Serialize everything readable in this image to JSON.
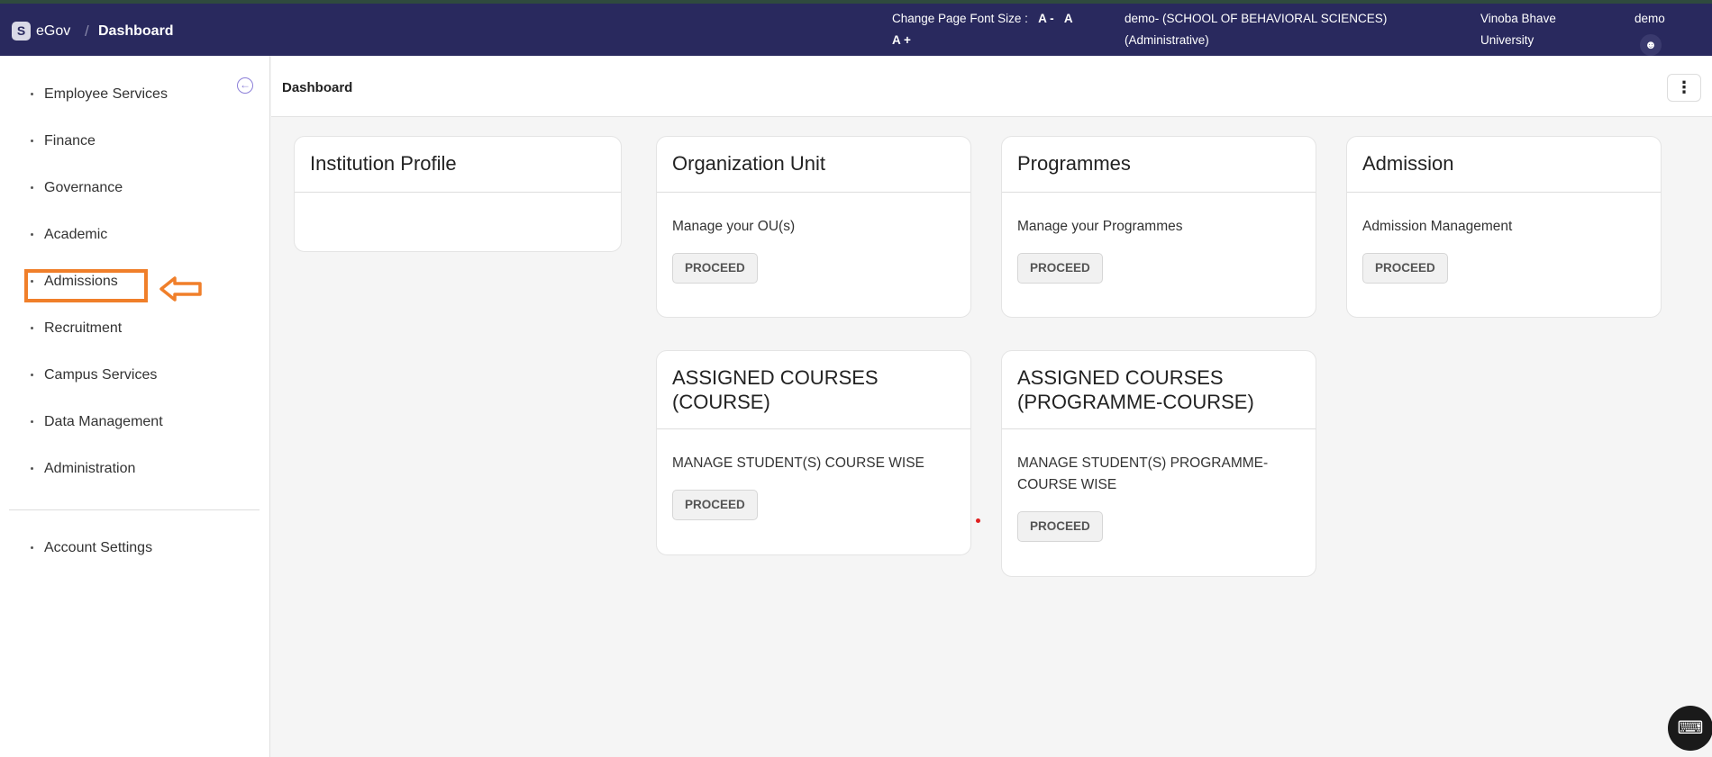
{
  "header": {
    "logo_letter": "S",
    "brand": "eGov",
    "separator": "/",
    "breadcrumb": "Dashboard",
    "font_size_label": "Change Page Font Size :",
    "font_dec": "A -",
    "font_reset": "A",
    "font_inc": "A +",
    "role_line1": "demo- (SCHOOL OF BEHAVIORAL SCIENCES)",
    "role_line2": "(Administrative)",
    "university_line1": "Vinoba Bhave",
    "university_line2": "University",
    "user": "demo"
  },
  "sidebar": {
    "items": [
      {
        "label": "Employee Services"
      },
      {
        "label": "Finance"
      },
      {
        "label": "Governance"
      },
      {
        "label": "Academic"
      },
      {
        "label": "Admissions"
      },
      {
        "label": "Recruitment"
      },
      {
        "label": "Campus Services"
      },
      {
        "label": "Data Management"
      },
      {
        "label": "Administration"
      }
    ],
    "account": "Account Settings"
  },
  "page": {
    "title": "Dashboard"
  },
  "cards": [
    {
      "title": "Institution Profile",
      "body": "",
      "button": ""
    },
    {
      "title": "Organization Unit",
      "body": "Manage your OU(s)",
      "button": "PROCEED"
    },
    {
      "title": "Programmes",
      "body": "Manage your Programmes",
      "button": "PROCEED"
    },
    {
      "title": "Admission",
      "body": "Admission Management",
      "button": "PROCEED"
    },
    {
      "title": "ASSIGNED COURSES (COURSE)",
      "body": "MANAGE STUDENT(S) COURSE WISE",
      "button": "PROCEED"
    },
    {
      "title": "ASSIGNED COURSES (PROGRAMME-COURSE)",
      "body": "MANAGE STUDENT(S) PROGRAMME-COURSE WISE",
      "button": "PROCEED"
    }
  ],
  "colors": {
    "header": "#29295e",
    "highlight": "#f07f2a"
  }
}
